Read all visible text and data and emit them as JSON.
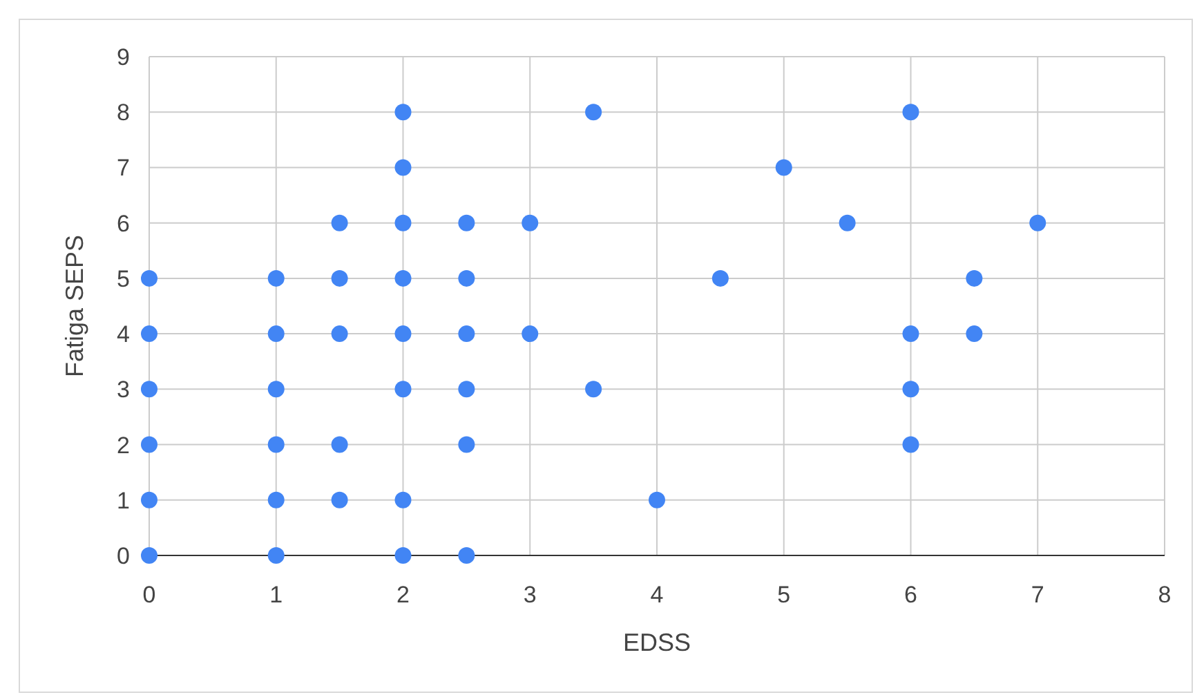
{
  "chart_data": {
    "type": "scatter",
    "xlabel": "EDSS",
    "ylabel": "Fatiga SEPS",
    "x": [
      0,
      0,
      0,
      0,
      0,
      0,
      1,
      1,
      1,
      1,
      1,
      1,
      1.5,
      1.5,
      1.5,
      1.5,
      1.5,
      2,
      2,
      2,
      2,
      2,
      2,
      2,
      2,
      2.5,
      2.5,
      2.5,
      2.5,
      2.5,
      2.5,
      3,
      3,
      3.5,
      3.5,
      4,
      4.5,
      5,
      5.5,
      6,
      6,
      6,
      6,
      6.5,
      6.5,
      7
    ],
    "series": [
      {
        "color": "#4285f4",
        "values": [
          0,
          1,
          2,
          3,
          4,
          5,
          0,
          1,
          2,
          3,
          4,
          5,
          1,
          2,
          4,
          5,
          6,
          0,
          1,
          3,
          4,
          5,
          6,
          7,
          8,
          0,
          2,
          3,
          4,
          5,
          6,
          4,
          6,
          3,
          8,
          1,
          5,
          7,
          6,
          2,
          3,
          4,
          8,
          4,
          5,
          6
        ]
      }
    ],
    "xlim": [
      0,
      8
    ],
    "xticks": [
      0,
      1,
      2,
      3,
      4,
      5,
      6,
      7,
      8
    ],
    "ylim": [
      0,
      9
    ],
    "yticks": [
      0,
      1,
      2,
      3,
      4,
      5,
      6,
      7,
      8,
      9
    ],
    "grid": true,
    "marker": "circle"
  }
}
